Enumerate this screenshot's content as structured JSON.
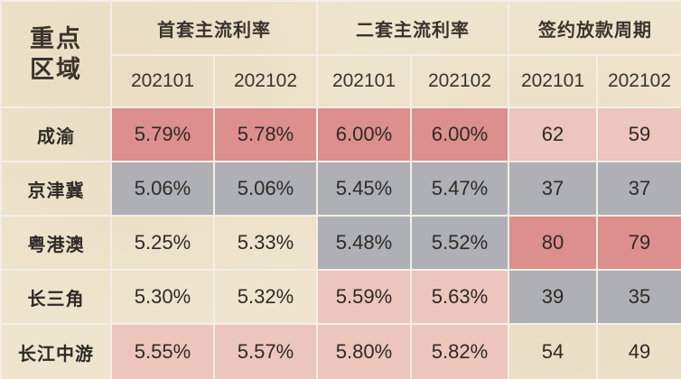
{
  "table": {
    "corner_header": [
      "重点",
      "区域"
    ],
    "group_headers": [
      "首套主流利率",
      "二套主流利率",
      "签约放款周期"
    ],
    "periods": [
      "202101",
      "202102",
      "202101",
      "202102",
      "202101",
      "202102"
    ],
    "rows": [
      {
        "region": "成渝",
        "values": [
          "5.79%",
          "5.78%",
          "6.00%",
          "6.00%",
          "62",
          "59"
        ],
        "shades": [
          "hi",
          "hi",
          "hi",
          "hi",
          "hi-light",
          "hi-light"
        ]
      },
      {
        "region": "京津冀",
        "values": [
          "5.06%",
          "5.06%",
          "5.45%",
          "5.47%",
          "37",
          "37"
        ],
        "shades": [
          "lo",
          "lo",
          "lo",
          "lo",
          "lo",
          "lo"
        ]
      },
      {
        "region": "粤港澳",
        "values": [
          "5.25%",
          "5.33%",
          "5.48%",
          "5.52%",
          "80",
          "79"
        ],
        "shades": [
          "plain",
          "plain",
          "lo",
          "lo",
          "hi",
          "hi"
        ]
      },
      {
        "region": "长三角",
        "values": [
          "5.30%",
          "5.32%",
          "5.59%",
          "5.63%",
          "39",
          "35"
        ],
        "shades": [
          "plain",
          "plain",
          "hi-light",
          "hi-light",
          "lo",
          "lo"
        ]
      },
      {
        "region": "长江中游",
        "values": [
          "5.55%",
          "5.57%",
          "5.80%",
          "5.82%",
          "54",
          "49"
        ],
        "shades": [
          "hi-light",
          "hi-light",
          "hi-light",
          "hi-light",
          "plain",
          "plain"
        ]
      }
    ]
  },
  "colors": {
    "high": "#dc8f8d",
    "high_light": "#ecc5bd",
    "low": "#aeb0b5",
    "background": "#efe4cd"
  }
}
